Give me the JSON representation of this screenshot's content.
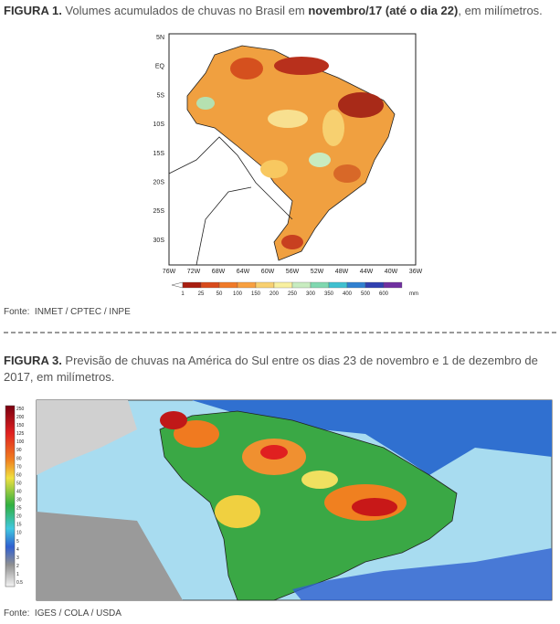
{
  "figure1": {
    "label": "FIGURA 1.",
    "caption": " Volumes acumulados de chuvas no Brasil em ",
    "caption_bold": "novembro/17 (até o dia 22)",
    "caption_end": ", em milímetros.",
    "lat_labels": [
      "5N",
      "EQ",
      "5S",
      "10S",
      "15S",
      "20S",
      "25S",
      "30S"
    ],
    "lon_labels": [
      "76W",
      "72W",
      "68W",
      "64W",
      "60W",
      "56W",
      "52W",
      "48W",
      "44W",
      "40W",
      "36W"
    ],
    "colorbar_labels": [
      "1",
      "25",
      "50",
      "100",
      "150",
      "200",
      "250",
      "300",
      "350",
      "400",
      "500",
      "600"
    ],
    "unit": "mm",
    "source_label": "Fonte:",
    "source": "INMET / CPTEC / INPE"
  },
  "figure3": {
    "label": "FIGURA 3.",
    "caption": " Previsão de chuvas na América do Sul entre os dias 23 de novembro e 1 de dezembro de 2017, em milímetros.",
    "legend_labels": [
      "250",
      "200",
      "150",
      "125",
      "100",
      "90",
      "80",
      "70",
      "60",
      "50",
      "40",
      "30",
      "25",
      "20",
      "15",
      "10",
      "5",
      "4",
      "3",
      "2",
      "1",
      "0.5"
    ],
    "source_label": "Fonte:",
    "source": "IGES / COLA / USDA"
  }
}
